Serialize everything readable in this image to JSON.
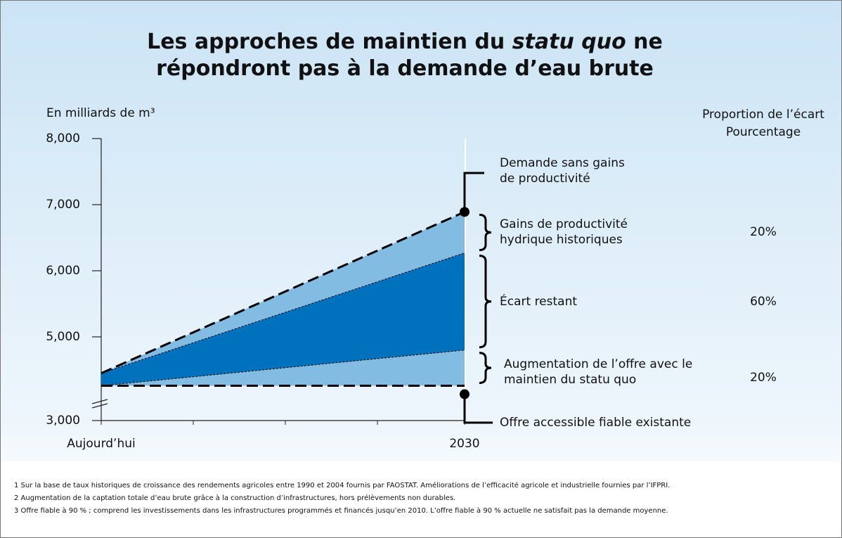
{
  "chart_data": {
    "type": "stacked_area",
    "title": [
      "Les approches de maintien du ",
      "statu quo",
      " ne répondront pas à la demande d’eau brute"
    ],
    "y_label": "En milliards de m³",
    "share_header": "Proportion de l’écart Pourcentage",
    "demand_label": "Demande sans gains de productivité",
    "categories": [
      "Aujourd’hui",
      "2030"
    ],
    "ylim": [
      3000,
      8000
    ],
    "yticks": [
      {
        "value": 3000,
        "label": "3,000"
      },
      {
        "value": 5000,
        "label": "5,000"
      },
      {
        "value": 6000,
        "label": "6,000"
      },
      {
        "value": 7000,
        "label": "7,000"
      },
      {
        "value": 8000,
        "label": "8,000"
      }
    ],
    "axis_break": true,
    "series": [
      {
        "name": "Offre accessible fiable existante",
        "color": "none",
        "line": "dashed",
        "values": [
          4260,
          4260
        ]
      },
      {
        "name": "Augmentation de l’offre avec le maintien du statu quo",
        "color": "#82bce3",
        "line": "dotted",
        "values": [
          0,
          540
        ],
        "share": 20,
        "share_label": "20%"
      },
      {
        "name": "Écart restant",
        "color": "#0071bc",
        "line": "dotted",
        "values": [
          190,
          1470
        ],
        "share": 60,
        "share_label": "60%"
      },
      {
        "name": "Gains de productivité hydrique historiques",
        "color": "#82bce3",
        "line": "dashed",
        "values": [
          0,
          620
        ],
        "share": 20,
        "share_label": "20%"
      }
    ],
    "footnotes": [
      "1 Sur la base de taux historiques de croissance des rendements agricoles entre 1990 et 2004 fournis par FAOSTAT. Améliorations de l’efficacité agricole et industrielle fournies par l’IFPRI.",
      "2 Augmentation de la captation totale d’eau brute grâce à la construction d’infrastructures, hors prélèvements non durables.",
      "3  Offre fiable à 90 % ; comprend les investissements dans les infrastructures programmés et financés jusqu’en 2010. L’offre fiable à 90 % actuelle ne satisfait pas la demande moyenne."
    ]
  }
}
